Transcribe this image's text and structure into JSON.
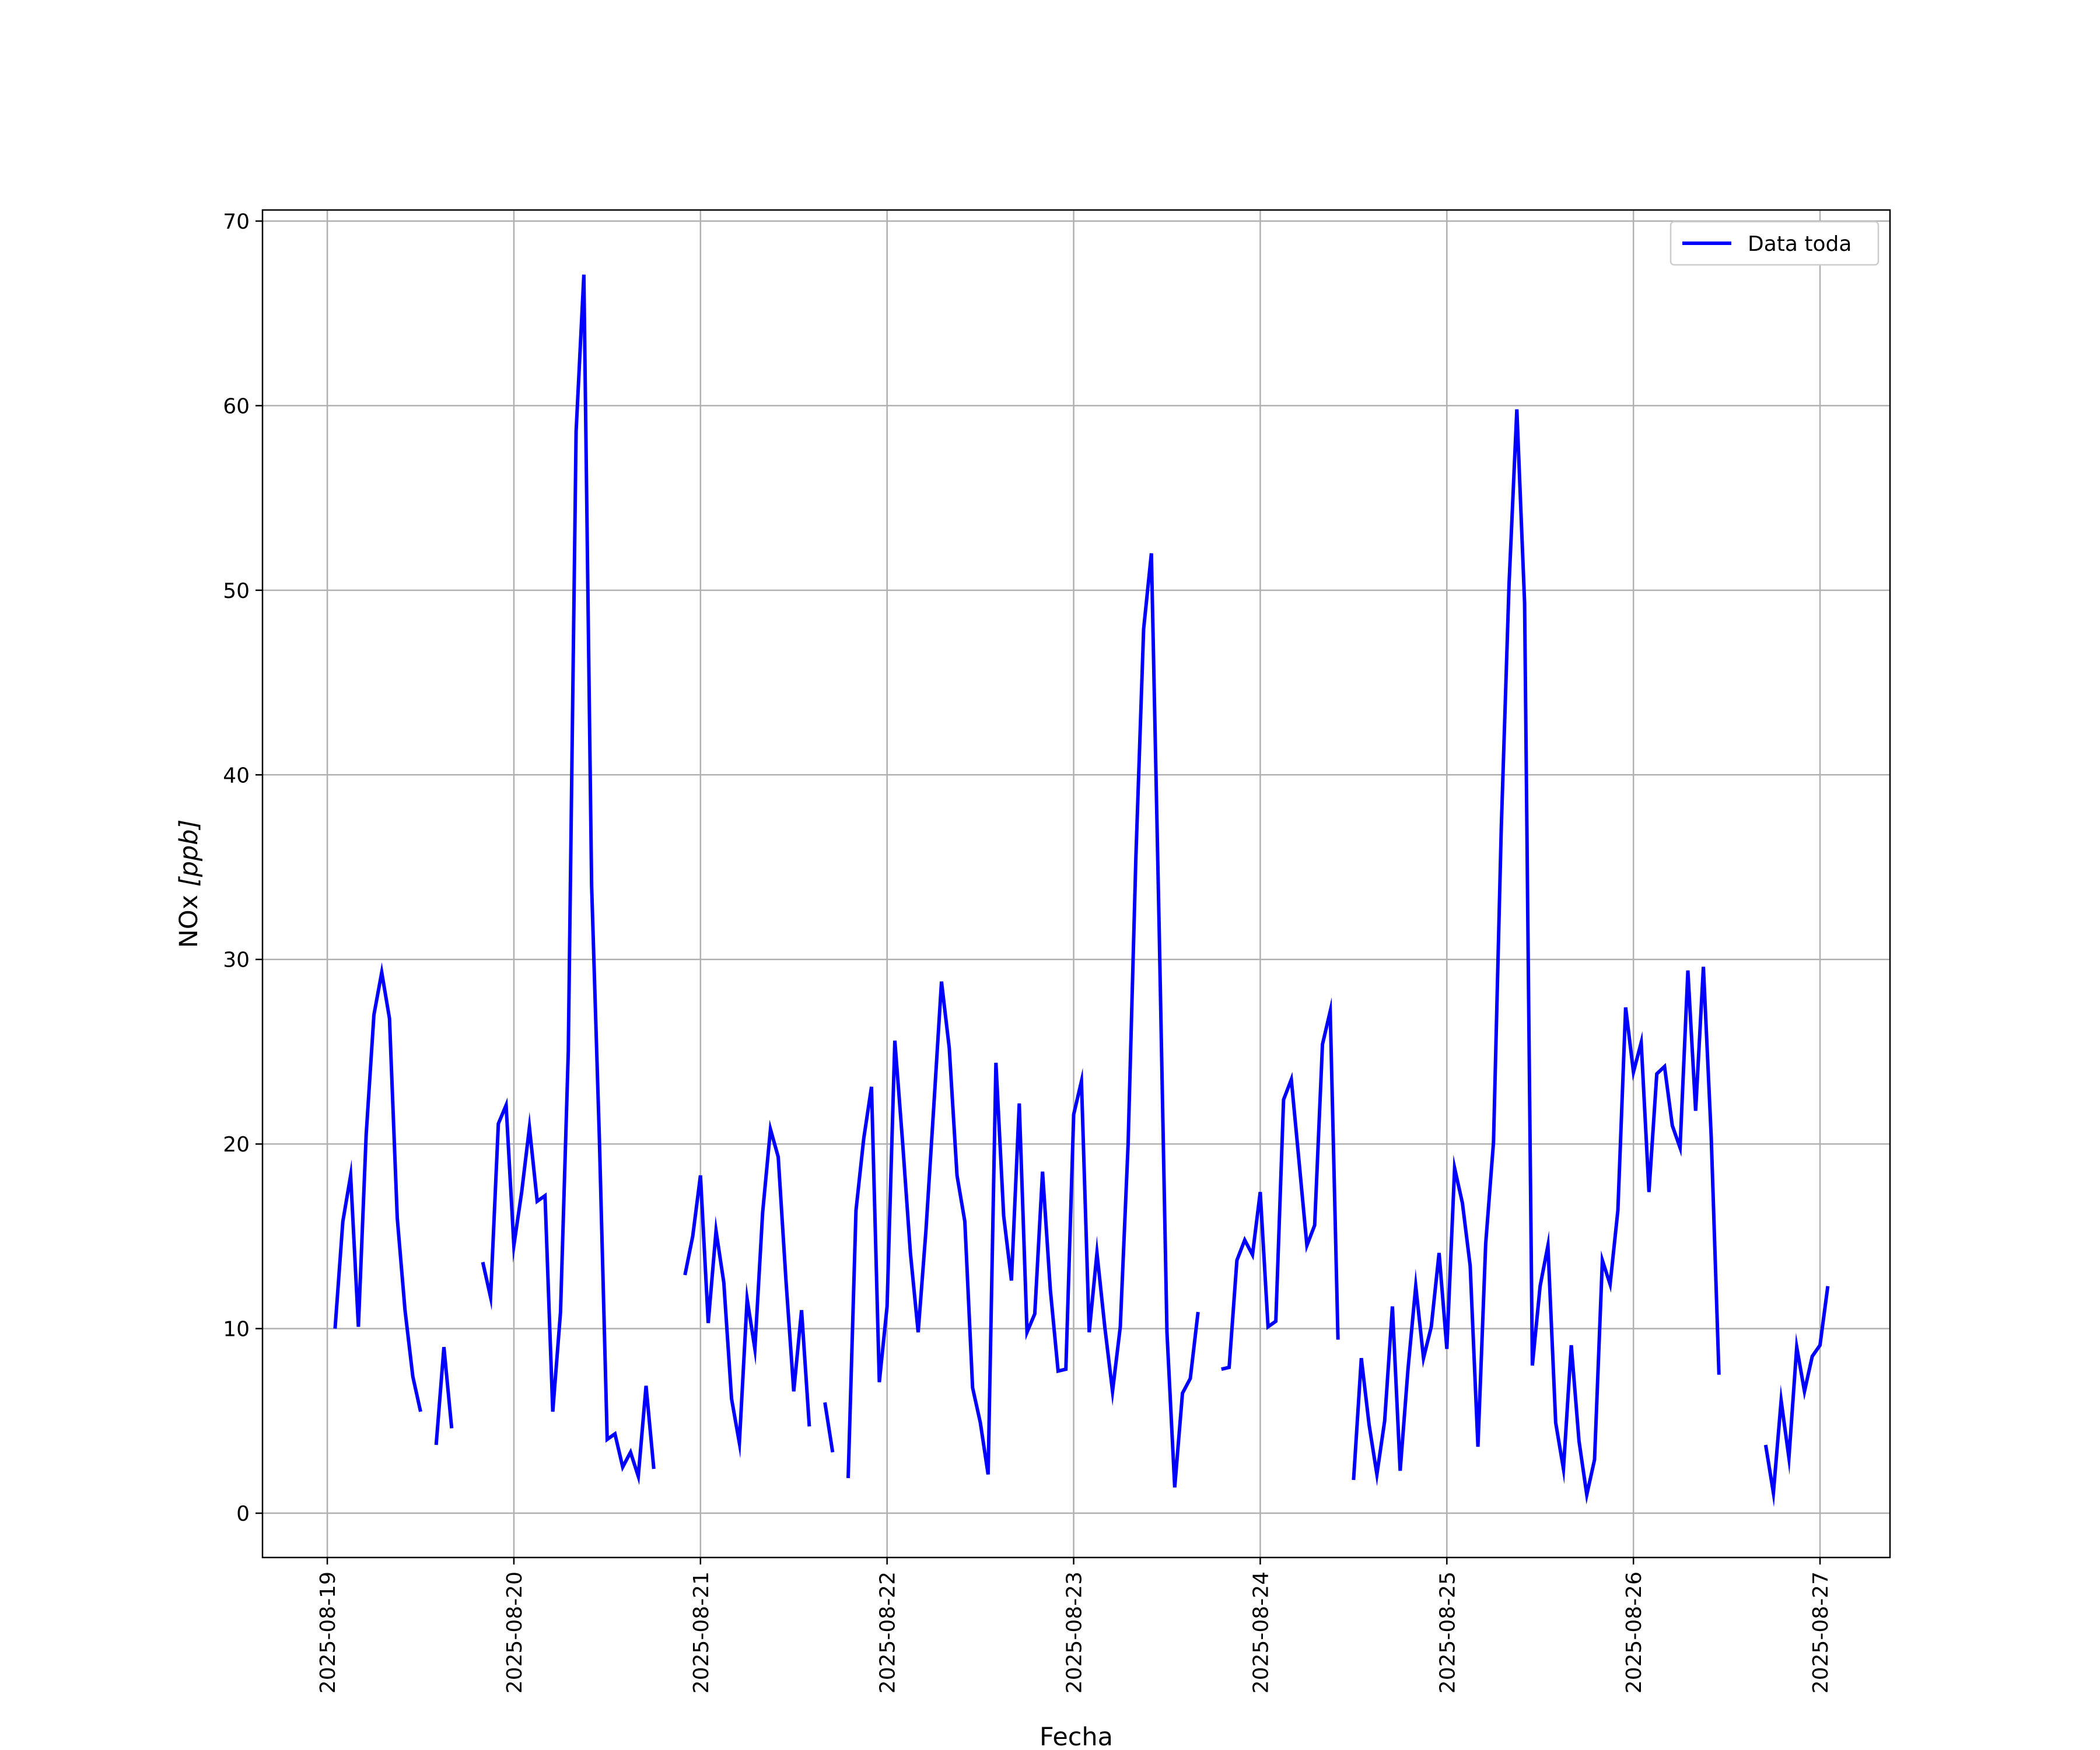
{
  "chart_data": {
    "type": "line",
    "title": "",
    "xlabel": "Fecha",
    "ylabel_text": "NOx ",
    "ylabel_unit": "[ppb]",
    "ylim": [
      -2.4,
      70.6
    ],
    "xlim": [
      "2025-08-18T15:40",
      "2025-08-27T09:00"
    ],
    "y_ticks": [
      0,
      10,
      20,
      30,
      40,
      50,
      60,
      70
    ],
    "x_ticks": [
      "2025-08-19",
      "2025-08-20",
      "2025-08-21",
      "2025-08-22",
      "2025-08-23",
      "2025-08-24",
      "2025-08-25",
      "2025-08-26",
      "2025-08-27"
    ],
    "grid": true,
    "legend": {
      "position": "top-right"
    },
    "colors": {
      "line": "#0000ff",
      "grid": "#b0b0b0",
      "axes": "#000000"
    },
    "series": [
      {
        "name": "Data toda",
        "start": "2025-08-19T01:00",
        "step_hours": 1,
        "values": [
          10,
          15.8,
          18.3,
          10.1,
          20.5,
          27,
          29.3,
          26.8,
          16,
          11,
          7.4,
          5.5,
          null,
          3.7,
          9,
          4.6,
          null,
          null,
          null,
          13.6,
          11.7,
          21.1,
          22.1,
          14.5,
          17.4,
          20.9,
          16.9,
          17.2,
          5.5,
          10.9,
          25,
          58.6,
          67.1,
          34,
          20.3,
          4,
          4.3,
          2.5,
          3.3,
          2,
          6.9,
          2.4,
          null,
          null,
          null,
          12.9,
          15,
          18.3,
          10.3,
          15.3,
          12.5,
          6.2,
          3.8,
          11.6,
          8.9,
          16.3,
          20.8,
          19.3,
          12.6,
          6.6,
          11,
          4.7,
          null,
          6,
          3.3,
          null,
          1.9,
          16.4,
          20.3,
          23.1,
          7.1,
          11.2,
          25.6,
          20.1,
          14.1,
          9.8,
          15.3,
          22,
          28.8,
          25.2,
          18.3,
          15.8,
          6.8,
          4.9,
          2.1,
          24.4,
          16.1,
          12.6,
          22.2,
          9.8,
          10.8,
          18.5,
          12.1,
          7.7,
          7.8,
          21.6,
          23.4,
          9.8,
          14.1,
          10.1,
          6.6,
          10.1,
          20,
          35.5,
          47.9,
          52,
          31.6,
          9.8,
          1.4,
          6.5,
          7.3,
          10.9,
          null,
          null,
          7.8,
          7.9,
          13.7,
          14.8,
          14,
          17.4,
          10.1,
          10.4,
          22.4,
          23.5,
          19,
          14.5,
          15.6,
          25.4,
          27.2,
          9.4,
          null,
          1.8,
          8.4,
          4.8,
          2.1,
          5,
          11.2,
          2.3,
          7.8,
          12.3,
          8.4,
          10.1,
          14.1,
          8.9,
          18.7,
          16.8,
          13.4,
          3.6,
          14.6,
          20.1,
          37.1,
          50.3,
          59.8,
          49.3,
          8,
          12.3,
          14.5,
          4.9,
          2.4,
          9.1,
          3.9,
          1,
          2.9,
          13.7,
          12.4,
          16.4,
          27.4,
          23.9,
          25.5,
          17.4,
          23.8,
          24.2,
          21,
          19.8,
          29.4,
          21.8,
          29.6,
          20.4,
          7.5,
          null,
          null,
          null,
          null,
          null,
          3.7,
          1.1,
          6.1,
          3,
          9,
          6.6,
          8.5,
          9.1,
          12.3
        ]
      }
    ]
  }
}
